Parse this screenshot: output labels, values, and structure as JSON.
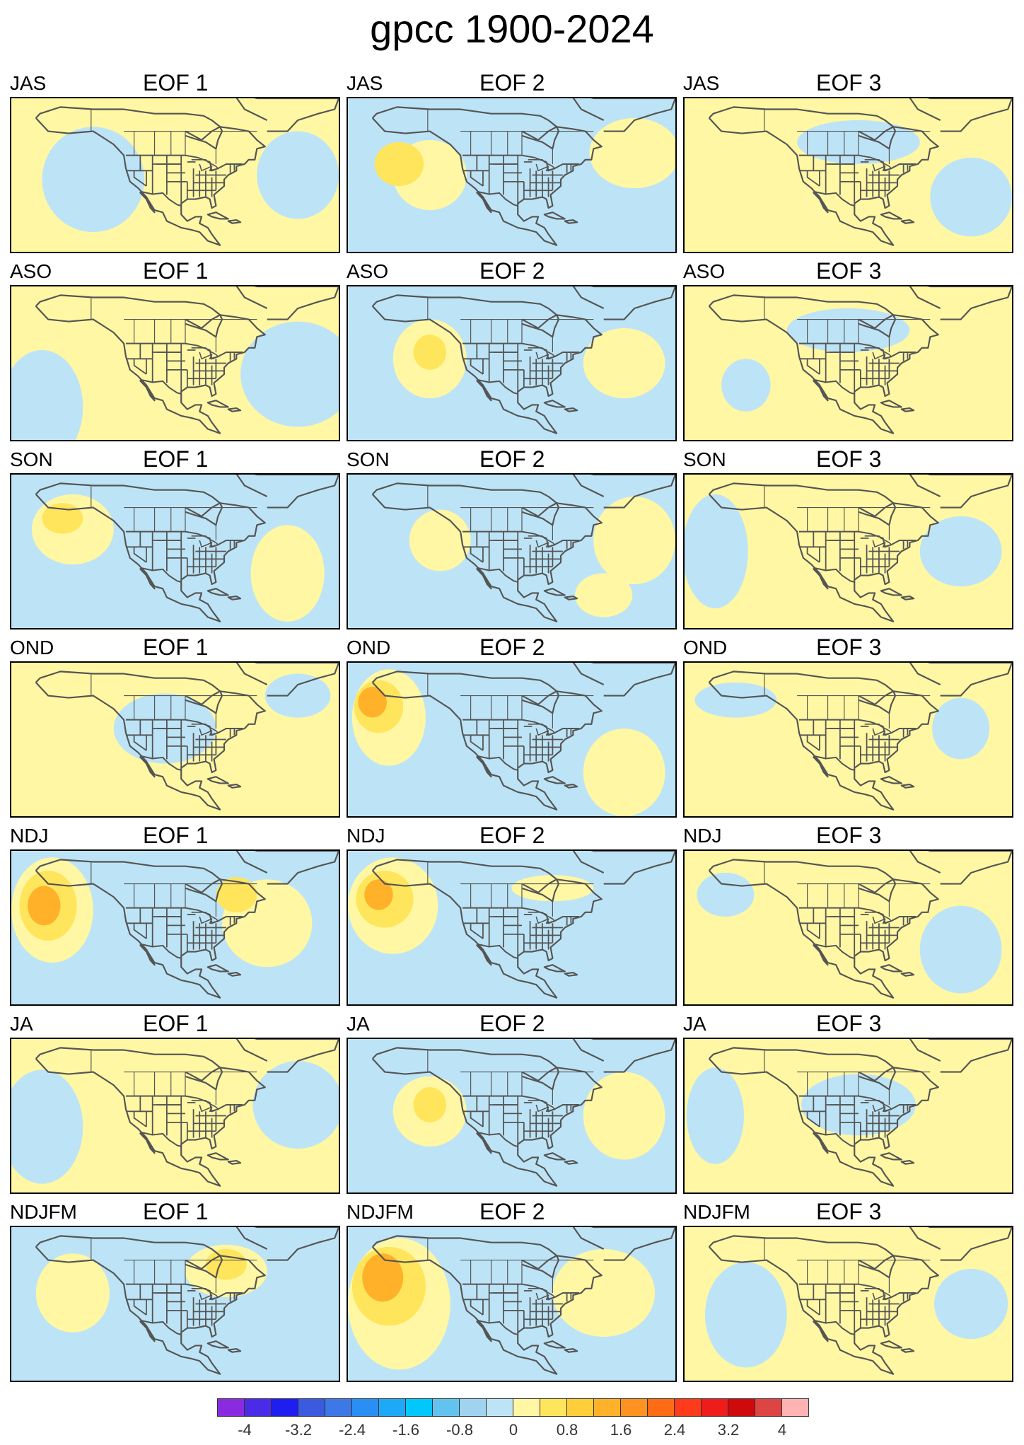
{
  "title": "gpcc 1900-2024",
  "seasons": [
    "JAS",
    "ASO",
    "SON",
    "OND",
    "NDJ",
    "JA",
    "NDJFM"
  ],
  "eofs": [
    "EOF 1",
    "EOF 2",
    "EOF 3"
  ],
  "map": {
    "projection": "lat-lon",
    "ocean_color": "#bde4f6",
    "line_color": "#555555"
  },
  "colorbar": {
    "colors": [
      "#8a2be2",
      "#4b2be8",
      "#1e1ef0",
      "#3a5ae0",
      "#3c79e6",
      "#2a8ff4",
      "#1ea8f8",
      "#00c8ff",
      "#63c3ef",
      "#9fd3f0",
      "#bde4f6",
      "#fff7a3",
      "#ffe55c",
      "#ffcf3a",
      "#ffb12a",
      "#ff9221",
      "#ff6c15",
      "#ff3b1c",
      "#ef1c1c",
      "#cf0a0a",
      "#dd4444",
      "#ffb3b3"
    ],
    "labels": [
      "-4",
      "-3.2",
      "-2.4",
      "-1.6",
      "-0.8",
      "0",
      "0.8",
      "1.6",
      "2.4",
      "3.2",
      "4"
    ],
    "values": [
      -4,
      -3.2,
      -2.4,
      -1.6,
      -0.8,
      0,
      0.8,
      1.6,
      2.4,
      3.2,
      4
    ]
  },
  "panels": [
    {
      "season": "JAS",
      "eof": "EOF 1",
      "base": "pos",
      "blobs": [
        {
          "lon": -140,
          "lat": 38,
          "rx": 25,
          "ry": 24,
          "level": -1
        },
        {
          "lon": -40,
          "lat": 40,
          "rx": 20,
          "ry": 20,
          "level": -1
        }
      ]
    },
    {
      "season": "JAS",
      "eof": "EOF 2",
      "base": "neg",
      "blobs": [
        {
          "lon": -140,
          "lat": 40,
          "rx": 18,
          "ry": 16,
          "level": 1
        },
        {
          "lon": -155,
          "lat": 45,
          "rx": 12,
          "ry": 10,
          "level": 2
        },
        {
          "lon": -40,
          "lat": 50,
          "rx": 22,
          "ry": 16,
          "level": 1
        }
      ]
    },
    {
      "season": "JAS",
      "eof": "EOF 3",
      "base": "pos",
      "blobs": [
        {
          "lon": -95,
          "lat": 55,
          "rx": 30,
          "ry": 10,
          "level": -1
        },
        {
          "lon": -40,
          "lat": 30,
          "rx": 20,
          "ry": 18,
          "level": -1
        }
      ]
    },
    {
      "season": "ASO",
      "eof": "EOF 1",
      "base": "pos",
      "blobs": [
        {
          "lon": -165,
          "lat": 20,
          "rx": 20,
          "ry": 26,
          "level": -1
        },
        {
          "lon": -40,
          "lat": 35,
          "rx": 28,
          "ry": 24,
          "level": -1
        }
      ]
    },
    {
      "season": "ASO",
      "eof": "EOF 2",
      "base": "neg",
      "blobs": [
        {
          "lon": -140,
          "lat": 42,
          "rx": 18,
          "ry": 18,
          "level": 1
        },
        {
          "lon": -140,
          "lat": 45,
          "rx": 8,
          "ry": 8,
          "level": 2
        },
        {
          "lon": -45,
          "lat": 40,
          "rx": 20,
          "ry": 16,
          "level": 1
        }
      ]
    },
    {
      "season": "ASO",
      "eof": "EOF 3",
      "base": "pos",
      "blobs": [
        {
          "lon": -100,
          "lat": 55,
          "rx": 30,
          "ry": 10,
          "level": -1
        },
        {
          "lon": -150,
          "lat": 30,
          "rx": 12,
          "ry": 12,
          "level": -1
        }
      ]
    },
    {
      "season": "SON",
      "eof": "EOF 1",
      "base": "neg",
      "blobs": [
        {
          "lon": -150,
          "lat": 50,
          "rx": 20,
          "ry": 16,
          "level": 1
        },
        {
          "lon": -155,
          "lat": 55,
          "rx": 10,
          "ry": 7,
          "level": 2
        },
        {
          "lon": -45,
          "lat": 30,
          "rx": 18,
          "ry": 22,
          "level": 1
        }
      ]
    },
    {
      "season": "SON",
      "eof": "EOF 2",
      "base": "neg",
      "blobs": [
        {
          "lon": -135,
          "lat": 45,
          "rx": 15,
          "ry": 14,
          "level": 1
        },
        {
          "lon": -40,
          "lat": 45,
          "rx": 20,
          "ry": 20,
          "level": 1
        },
        {
          "lon": -55,
          "lat": 20,
          "rx": 14,
          "ry": 10,
          "level": 1
        }
      ]
    },
    {
      "season": "SON",
      "eof": "EOF 3",
      "base": "pos",
      "blobs": [
        {
          "lon": -165,
          "lat": 40,
          "rx": 16,
          "ry": 26,
          "level": -1
        },
        {
          "lon": -45,
          "lat": 40,
          "rx": 20,
          "ry": 16,
          "level": -1
        }
      ]
    },
    {
      "season": "OND",
      "eof": "EOF 1",
      "base": "pos",
      "blobs": [
        {
          "lon": -105,
          "lat": 45,
          "rx": 25,
          "ry": 16,
          "level": -1
        },
        {
          "lon": -40,
          "lat": 60,
          "rx": 16,
          "ry": 10,
          "level": -1
        }
      ]
    },
    {
      "season": "OND",
      "eof": "EOF 2",
      "base": "neg",
      "blobs": [
        {
          "lon": -160,
          "lat": 50,
          "rx": 18,
          "ry": 22,
          "level": 1
        },
        {
          "lon": -165,
          "lat": 55,
          "rx": 12,
          "ry": 12,
          "level": 2
        },
        {
          "lon": -168,
          "lat": 57,
          "rx": 7,
          "ry": 7,
          "level": 3
        },
        {
          "lon": -45,
          "lat": 25,
          "rx": 20,
          "ry": 20,
          "level": 1
        }
      ]
    },
    {
      "season": "OND",
      "eof": "EOF 3",
      "base": "pos",
      "blobs": [
        {
          "lon": -155,
          "lat": 58,
          "rx": 20,
          "ry": 8,
          "level": -1
        },
        {
          "lon": -45,
          "lat": 45,
          "rx": 14,
          "ry": 14,
          "level": -1
        }
      ]
    },
    {
      "season": "NDJ",
      "eof": "EOF 1",
      "base": "neg",
      "blobs": [
        {
          "lon": -160,
          "lat": 48,
          "rx": 20,
          "ry": 24,
          "level": 1
        },
        {
          "lon": -162,
          "lat": 50,
          "rx": 14,
          "ry": 16,
          "level": 2
        },
        {
          "lon": -164,
          "lat": 50,
          "rx": 8,
          "ry": 9,
          "level": 3
        },
        {
          "lon": -55,
          "lat": 42,
          "rx": 22,
          "ry": 20,
          "level": 1
        },
        {
          "lon": -70,
          "lat": 55,
          "rx": 10,
          "ry": 8,
          "level": 2
        }
      ]
    },
    {
      "season": "NDJ",
      "eof": "EOF 2",
      "base": "neg",
      "blobs": [
        {
          "lon": -158,
          "lat": 50,
          "rx": 22,
          "ry": 22,
          "level": 1
        },
        {
          "lon": -162,
          "lat": 53,
          "rx": 14,
          "ry": 13,
          "level": 2
        },
        {
          "lon": -165,
          "lat": 55,
          "rx": 7,
          "ry": 7,
          "level": 3
        },
        {
          "lon": -80,
          "lat": 58,
          "rx": 20,
          "ry": 6,
          "level": 1
        }
      ]
    },
    {
      "season": "NDJ",
      "eof": "EOF 3",
      "base": "pos",
      "blobs": [
        {
          "lon": -160,
          "lat": 55,
          "rx": 14,
          "ry": 10,
          "level": -1
        },
        {
          "lon": -45,
          "lat": 30,
          "rx": 20,
          "ry": 20,
          "level": -1
        }
      ]
    },
    {
      "season": "JA",
      "eof": "EOF 1",
      "base": "pos",
      "blobs": [
        {
          "lon": -165,
          "lat": 35,
          "rx": 20,
          "ry": 26,
          "level": -1
        },
        {
          "lon": -40,
          "lat": 45,
          "rx": 22,
          "ry": 20,
          "level": -1
        }
      ]
    },
    {
      "season": "JA",
      "eof": "EOF 2",
      "base": "neg",
      "blobs": [
        {
          "lon": -140,
          "lat": 42,
          "rx": 18,
          "ry": 16,
          "level": 1
        },
        {
          "lon": -140,
          "lat": 45,
          "rx": 8,
          "ry": 8,
          "level": 2
        },
        {
          "lon": -45,
          "lat": 40,
          "rx": 20,
          "ry": 20,
          "level": 1
        }
      ]
    },
    {
      "season": "JA",
      "eof": "EOF 3",
      "base": "pos",
      "blobs": [
        {
          "lon": -95,
          "lat": 45,
          "rx": 28,
          "ry": 14,
          "level": -1
        },
        {
          "lon": -165,
          "lat": 40,
          "rx": 14,
          "ry": 22,
          "level": -1
        }
      ]
    },
    {
      "season": "NDJFM",
      "eof": "EOF 1",
      "base": "neg",
      "blobs": [
        {
          "lon": -150,
          "lat": 45,
          "rx": 18,
          "ry": 18,
          "level": 1
        },
        {
          "lon": -75,
          "lat": 55,
          "rx": 20,
          "ry": 12,
          "level": 1
        },
        {
          "lon": -75,
          "lat": 58,
          "rx": 10,
          "ry": 7,
          "level": 2
        }
      ]
    },
    {
      "season": "NDJFM",
      "eof": "EOF 2",
      "base": "neg",
      "blobs": [
        {
          "lon": -155,
          "lat": 40,
          "rx": 25,
          "ry": 30,
          "level": 1
        },
        {
          "lon": -160,
          "lat": 48,
          "rx": 18,
          "ry": 18,
          "level": 2
        },
        {
          "lon": -163,
          "lat": 52,
          "rx": 10,
          "ry": 11,
          "level": 3
        },
        {
          "lon": -55,
          "lat": 45,
          "rx": 25,
          "ry": 20,
          "level": 1
        }
      ]
    },
    {
      "season": "NDJFM",
      "eof": "EOF 3",
      "base": "pos",
      "blobs": [
        {
          "lon": -150,
          "lat": 35,
          "rx": 20,
          "ry": 24,
          "level": -1
        },
        {
          "lon": -40,
          "lat": 40,
          "rx": 18,
          "ry": 16,
          "level": -1
        }
      ]
    }
  ]
}
